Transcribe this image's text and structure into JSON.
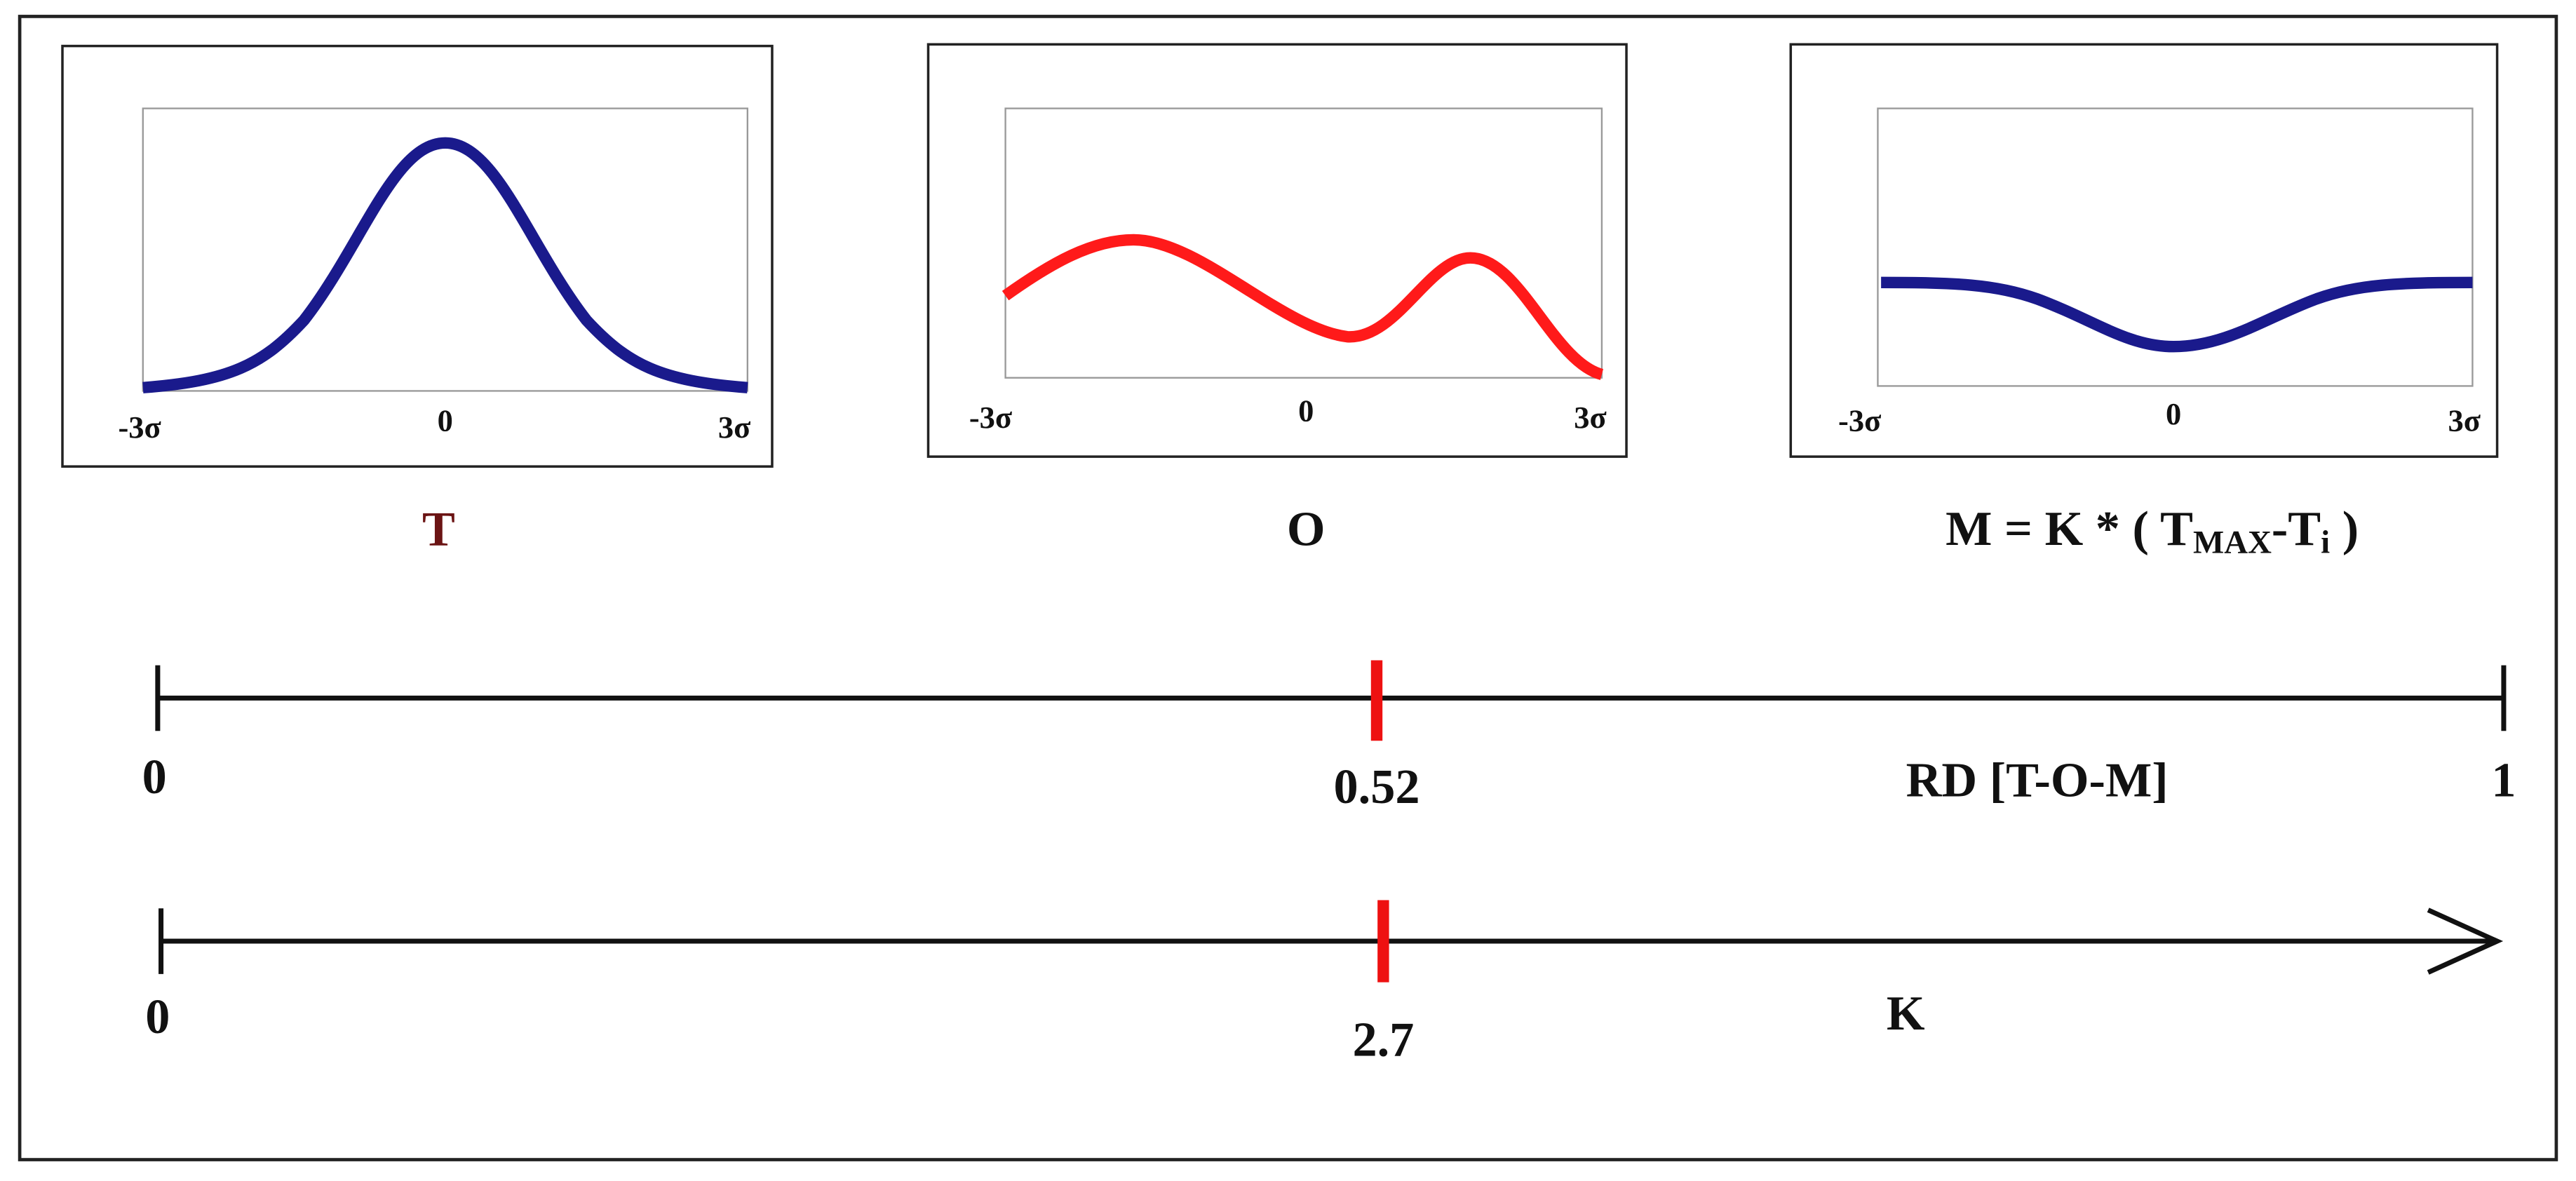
{
  "plots": [
    {
      "ticks": [
        "-3σ",
        "0",
        "3σ"
      ],
      "caption": "T"
    },
    {
      "ticks": [
        "-3σ",
        "0",
        "3σ"
      ],
      "caption": "O"
    },
    {
      "ticks": [
        "-3σ",
        "0",
        "3σ"
      ],
      "caption_parts": [
        "M = K * ( T",
        "MAX",
        "-T",
        "i",
        " )"
      ]
    }
  ],
  "rd_line": {
    "start": "0",
    "marker": "0.52",
    "label": "RD [T-O-M]",
    "end": "1"
  },
  "k_line": {
    "start": "0",
    "marker": "2.7",
    "label": "K"
  }
}
